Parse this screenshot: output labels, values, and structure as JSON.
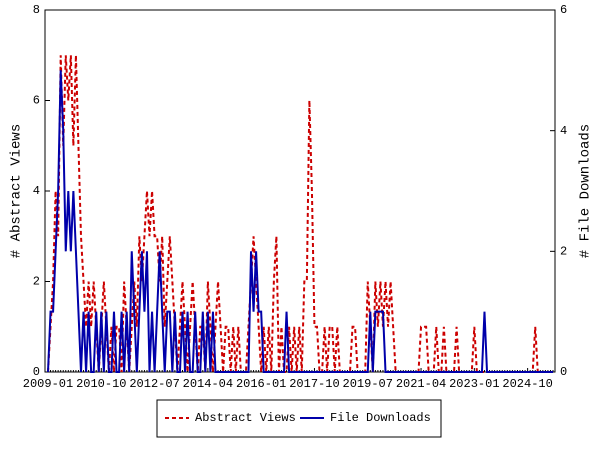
{
  "chart_data": {
    "type": "line",
    "y_label": "# Abstract Views",
    "y2_label": "# File Downloads",
    "ylim": [
      0,
      8
    ],
    "yticks": [
      0,
      2,
      4,
      6,
      8
    ],
    "y2lim": [
      0,
      6
    ],
    "y2ticks": [
      0,
      2,
      4,
      6
    ],
    "legend": "bottom",
    "categories": [
      "2009-01",
      null,
      null,
      null,
      null,
      null,
      null,
      null,
      null,
      null,
      null,
      null,
      null,
      null,
      null,
      null,
      null,
      null,
      null,
      null,
      null,
      "2010-10",
      null,
      null,
      null,
      null,
      null,
      null,
      null,
      null,
      null,
      null,
      null,
      null,
      null,
      null,
      null,
      null,
      null,
      null,
      null,
      null,
      "2012-07",
      null,
      null,
      null,
      null,
      null,
      null,
      null,
      null,
      null,
      null,
      null,
      null,
      null,
      null,
      null,
      null,
      null,
      null,
      null,
      null,
      "2014-04",
      null,
      null,
      null,
      null,
      null,
      null,
      null,
      null,
      null,
      null,
      null,
      null,
      null,
      null,
      null,
      null,
      null,
      null,
      null,
      null,
      "2016-01",
      null,
      null,
      null,
      null,
      null,
      null,
      null,
      null,
      null,
      null,
      null,
      null,
      null,
      null,
      null,
      null,
      null,
      null,
      null,
      null,
      "2017-10",
      null,
      null,
      null,
      null,
      null,
      null,
      null,
      null,
      null,
      null,
      null,
      null,
      null,
      null,
      null,
      null,
      null,
      null,
      null,
      null,
      "2019-07",
      null,
      null,
      null,
      null,
      null,
      null,
      null,
      null,
      null,
      null,
      null,
      null,
      null,
      null,
      null,
      null,
      null,
      null,
      null,
      null,
      "2021-04",
      null,
      null,
      null,
      null,
      null,
      null,
      null,
      null,
      null,
      null,
      null,
      null,
      null,
      null,
      null,
      null,
      null,
      null,
      null,
      null,
      "2023-01",
      null,
      null,
      null,
      null,
      null,
      null,
      null,
      null,
      null,
      null,
      null,
      null,
      null,
      null,
      null,
      null,
      null,
      null,
      null,
      null,
      "2024-10",
      null,
      null,
      null,
      null,
      null,
      null,
      null,
      null,
      null,
      null
    ],
    "series": [
      {
        "name": "Abstract Views",
        "color": "#cc0000",
        "dashed": true,
        "values": [
          0,
          1,
          2,
          4,
          3,
          7,
          5,
          7,
          6,
          7,
          5,
          7,
          5,
          3,
          2,
          1,
          2,
          1,
          2,
          1,
          0,
          1,
          2,
          1,
          0,
          1,
          0,
          1,
          1,
          0,
          2,
          1,
          0,
          1,
          2,
          1,
          3,
          2,
          3,
          4,
          3,
          4,
          3,
          3,
          2,
          3,
          1,
          2,
          3,
          2,
          1,
          0,
          1,
          2,
          1,
          0,
          1,
          2,
          1,
          0,
          1,
          1,
          0,
          2,
          1,
          0,
          1,
          2,
          1,
          0,
          1,
          1,
          0,
          1,
          0,
          1,
          0,
          0,
          0,
          1,
          2,
          3,
          2,
          1,
          0,
          1,
          0,
          1,
          0,
          2,
          3,
          0,
          1,
          0,
          0,
          1,
          0,
          1,
          0,
          1,
          0,
          2,
          2,
          6,
          4,
          1,
          1,
          0,
          0,
          1,
          0,
          1,
          1,
          0,
          1,
          0,
          0,
          0,
          0,
          0,
          1,
          1,
          0,
          0,
          0,
          0,
          2,
          1,
          0,
          2,
          1,
          2,
          1,
          2,
          1,
          2,
          1,
          0,
          0,
          0,
          0,
          0,
          0,
          0,
          0,
          0,
          0,
          1,
          1,
          1,
          0,
          0,
          0,
          1,
          0,
          0,
          1,
          0,
          0,
          0,
          0,
          1,
          0,
          0,
          0,
          0,
          0,
          0,
          1,
          0,
          0,
          0,
          0,
          0,
          0,
          0,
          0,
          0,
          0,
          0,
          0,
          0,
          0,
          0,
          0,
          0,
          0,
          0,
          0,
          0,
          0,
          0,
          1,
          0,
          0,
          0,
          0,
          0,
          0,
          0
        ]
      },
      {
        "name": "File Downloads",
        "color": "#0000aa",
        "axis": "y2",
        "values": [
          0,
          1,
          1,
          2,
          3,
          5,
          4,
          2,
          3,
          2,
          3,
          2,
          1,
          0,
          1,
          0,
          1,
          0,
          0,
          1,
          0,
          1,
          0,
          1,
          0,
          0,
          1,
          0,
          0,
          1,
          0,
          1,
          0,
          2,
          1,
          0,
          1,
          2,
          1,
          2,
          0,
          1,
          0,
          1,
          2,
          1,
          0,
          1,
          1,
          0,
          1,
          0,
          0,
          1,
          0,
          1,
          0,
          0,
          1,
          0,
          0,
          1,
          0,
          1,
          0,
          1,
          0,
          0,
          0,
          0,
          0,
          0,
          0,
          0,
          0,
          0,
          0,
          0,
          0,
          0,
          2,
          1,
          2,
          1,
          1,
          0,
          0,
          0,
          0,
          0,
          0,
          0,
          0,
          0,
          1,
          0,
          0,
          0,
          0,
          0,
          0,
          0,
          0,
          0,
          0,
          0,
          0,
          0,
          0,
          0,
          0,
          0,
          0,
          0,
          0,
          0,
          0,
          0,
          0,
          0,
          0,
          0,
          0,
          0,
          0,
          0,
          0,
          1,
          0,
          1,
          1,
          1,
          1,
          0,
          0,
          0,
          0,
          0,
          0,
          0,
          0,
          0,
          0,
          0,
          0,
          0,
          0,
          0,
          0,
          0,
          0,
          0,
          0,
          0,
          0,
          0,
          0,
          0,
          0,
          0,
          0,
          0,
          0,
          0,
          0,
          0,
          0,
          0,
          0,
          0,
          0,
          0,
          1,
          0,
          0,
          0,
          0,
          0,
          0,
          0,
          0,
          0,
          0,
          0,
          0,
          0,
          0,
          0,
          0,
          0,
          0,
          0,
          0,
          0,
          0,
          0,
          0,
          0,
          0,
          0
        ]
      }
    ]
  }
}
